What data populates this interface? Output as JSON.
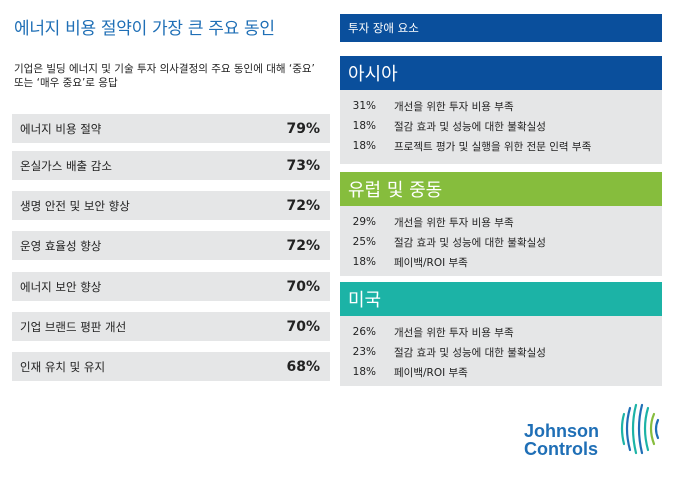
{
  "left": {
    "title": "에너지 비용 절약이 가장 큰 주요 동인",
    "subtitle": "기업은 빌딩 에너지 및 기술 투자 의사결정의 주요 동인에 대해 ‘중요’ 또는 ‘매우 중요’로 응답",
    "drivers": [
      {
        "label": "에너지 비용 절약",
        "pct": "79%"
      },
      {
        "label": "온실가스 배출 감소",
        "pct": "73%"
      },
      {
        "label": "생명 안전 및 보안 향상",
        "pct": "72%"
      },
      {
        "label": "운영 효율성 향상",
        "pct": "72%"
      },
      {
        "label": "에너지 보안 향상",
        "pct": "70%"
      },
      {
        "label": "기업 브랜드 평판 개선",
        "pct": "70%"
      },
      {
        "label": "인재 유치 및 유지",
        "pct": "68%"
      }
    ]
  },
  "right": {
    "header": "투자 장애 요소",
    "regions": [
      {
        "name": "아시아",
        "color": "#0a4f9c",
        "rows": [
          {
            "pct": "31%",
            "text": "개선을 위한 투자 비용 부족"
          },
          {
            "pct": "18%",
            "text": "절감 효과 및 성능에 대한 불확실성"
          },
          {
            "pct": "18%",
            "text": "프로젝트 평가 및 실행을 위한 전문 인력 부족"
          }
        ]
      },
      {
        "name": "유럽 및 중동",
        "color": "#86bd3d",
        "rows": [
          {
            "pct": "29%",
            "text": "개선을 위한 투자 비용 부족"
          },
          {
            "pct": "25%",
            "text": "절감 효과 및 성능에 대한 불확실성"
          },
          {
            "pct": "18%",
            "text": "페이백/ROI 부족"
          }
        ]
      },
      {
        "name": "미국",
        "color": "#1cb3a6",
        "rows": [
          {
            "pct": "26%",
            "text": "개선을 위한 투자 비용 부족"
          },
          {
            "pct": "23%",
            "text": "절감 효과 및 성능에 대한 불확실성"
          },
          {
            "pct": "18%",
            "text": "페이백/ROI 부족"
          }
        ]
      }
    ]
  },
  "logo": {
    "line1": "Johnson",
    "line2": "Controls",
    "color": "#1f6fb6"
  }
}
